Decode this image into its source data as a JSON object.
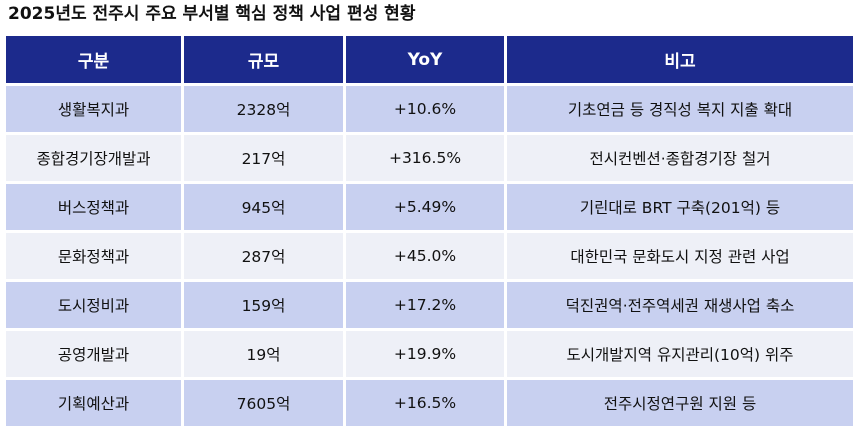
{
  "title": "2025년도 전주시 주요 부서별 핵심 정책 사업 편성 현황",
  "table": {
    "headers": [
      "구분",
      "규모",
      "YoY",
      "비고"
    ],
    "rows": [
      [
        "생활복지과",
        "2328억",
        "+10.6%",
        "기초연금 등 경직성 복지 지출 확대"
      ],
      [
        "종합경기장개발과",
        "217억",
        "+316.5%",
        "전시컨벤션·종합경기장 철거"
      ],
      [
        "버스정책과",
        "945억",
        "+5.49%",
        "기린대로 BRT 구축(201억) 등"
      ],
      [
        "문화정책과",
        "287억",
        "+45.0%",
        "대한민국 문화도시 지정 관련 사업"
      ],
      [
        "도시정비과",
        "159억",
        "+17.2%",
        "덕진권역·전주역세권 재생사업 축소"
      ],
      [
        "공영개발과",
        "19억",
        "+19.9%",
        "도시개발지역 유지관리(10억) 위주"
      ],
      [
        "기획예산과",
        "7605억",
        "+16.5%",
        "전주시정연구원 지원 등"
      ]
    ]
  }
}
